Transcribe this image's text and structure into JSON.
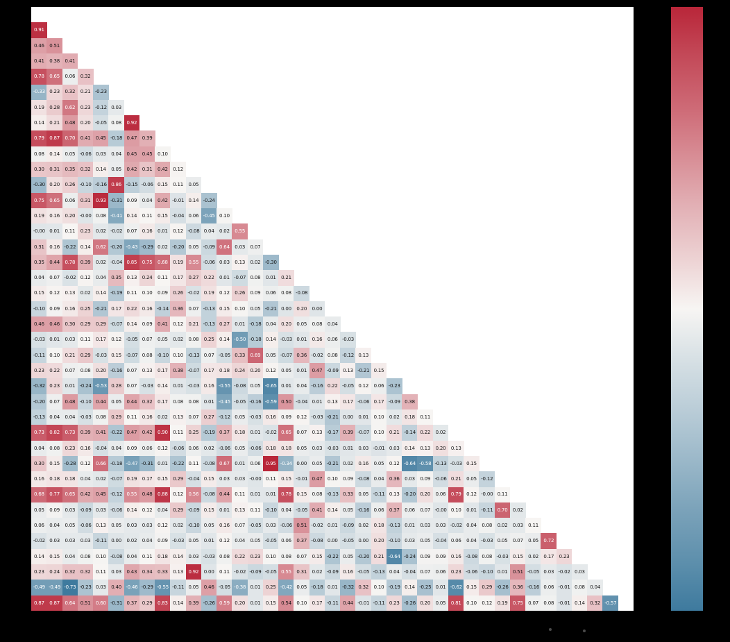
{
  "figure": {
    "background_color": "#000000",
    "plot_background_color": "#ffffff"
  },
  "chart_data": {
    "type": "heatmap",
    "subtype": "lower-triangular-correlation-matrix",
    "title": "",
    "xlabel": "",
    "ylabel": "",
    "n": 39,
    "grid": false,
    "legend_position": "colorbar-right",
    "value_format": "two-decimals",
    "colormap": {
      "positive": "#b92639",
      "center": "#f7f5f3",
      "negative": "#3e7a9e",
      "center_value": 0.11,
      "vmin": -0.73,
      "vmax": 0.95
    },
    "colorbar": {
      "position": "right",
      "top_color": "#b92639",
      "middle_color": "#f7f5f3",
      "bottom_color": "#3e7a9e",
      "tick_labels": []
    },
    "rows": [
      [
        "0.91"
      ],
      [
        "0.46",
        "0.51"
      ],
      [
        "0.41",
        "0.38",
        "0.41"
      ],
      [
        "0.78",
        "0.65",
        "0.06",
        "0.32"
      ],
      [
        "-0.33",
        "0.23",
        "0.32",
        "0.21",
        "-0.23"
      ],
      [
        "0.19",
        "0.28",
        "0.62",
        "0.23",
        "-0.12",
        "0.03"
      ],
      [
        "0.14",
        "0.21",
        "0.48",
        "0.20",
        "-0.05",
        "0.08",
        "0.92"
      ],
      [
        "0.79",
        "0.87",
        "0.70",
        "0.41",
        "0.45",
        "-0.18",
        "0.47",
        "0.39"
      ],
      [
        "0.08",
        "0.14",
        "0.05",
        "-0.06",
        "0.03",
        "0.04",
        "0.45",
        "0.45",
        "0.10"
      ],
      [
        "0.30",
        "0.31",
        "0.35",
        "0.32",
        "0.14",
        "0.05",
        "0.42",
        "0.31",
        "0.42",
        "0.12"
      ],
      [
        "-0.30",
        "0.20",
        "0.26",
        "-0.10",
        "-0.16",
        "0.86",
        "-0.15",
        "-0.06",
        "0.15",
        "0.11",
        "0.05"
      ],
      [
        "0.75",
        "0.65",
        "0.06",
        "0.31",
        "0.93",
        "-0.31",
        "0.09",
        "0.04",
        "0.42",
        "-0.01",
        "0.14",
        "-0.24"
      ],
      [
        "0.19",
        "0.16",
        "0.20",
        "-0.00",
        "0.08",
        "-0.41",
        "0.14",
        "0.11",
        "0.15",
        "-0.04",
        "0.06",
        "-0.45",
        "0.10"
      ],
      [
        "-0.00",
        "0.01",
        "0.11",
        "0.23",
        "0.02",
        "-0.02",
        "0.07",
        "0.16",
        "0.01",
        "0.12",
        "-0.08",
        "0.04",
        "0.02",
        "0.55"
      ],
      [
        "0.31",
        "0.16",
        "-0.22",
        "0.14",
        "0.62",
        "-0.20",
        "-0.43",
        "-0.29",
        "0.02",
        "-0.20",
        "0.05",
        "-0.09",
        "0.64",
        "0.03",
        "0.07"
      ],
      [
        "0.35",
        "0.44",
        "0.78",
        "0.39",
        "0.02",
        "-0.04",
        "0.85",
        "0.75",
        "0.68",
        "0.19",
        "0.55",
        "-0.06",
        "0.03",
        "0.13",
        "0.02",
        "-0.30"
      ],
      [
        "0.04",
        "0.07",
        "-0.02",
        "0.12",
        "0.04",
        "0.35",
        "0.13",
        "0.24",
        "0.11",
        "0.17",
        "0.27",
        "0.22",
        "0.01",
        "-0.07",
        "0.08",
        "0.01",
        "0.21"
      ],
      [
        "0.15",
        "0.12",
        "0.13",
        "0.02",
        "0.14",
        "-0.19",
        "0.11",
        "0.10",
        "0.09",
        "0.26",
        "-0.02",
        "0.19",
        "0.12",
        "0.26",
        "0.09",
        "0.06",
        "0.08",
        "-0.08"
      ],
      [
        "-0.10",
        "0.09",
        "0.16",
        "0.25",
        "-0.21",
        "0.17",
        "0.22",
        "0.16",
        "-0.14",
        "0.36",
        "0.07",
        "-0.13",
        "0.15",
        "0.10",
        "0.05",
        "-0.21",
        "0.00",
        "0.20",
        "0.00"
      ],
      [
        "0.46",
        "0.46",
        "0.30",
        "0.29",
        "0.29",
        "-0.07",
        "0.14",
        "0.09",
        "0.41",
        "0.12",
        "0.21",
        "-0.13",
        "0.27",
        "0.01",
        "-0.18",
        "0.04",
        "0.20",
        "0.05",
        "0.08",
        "0.04"
      ],
      [
        "-0.03",
        "0.01",
        "0.03",
        "0.11",
        "0.17",
        "0.12",
        "-0.05",
        "0.07",
        "0.05",
        "0.02",
        "0.08",
        "0.25",
        "0.14",
        "-0.50",
        "-0.18",
        "0.14",
        "-0.03",
        "0.01",
        "0.16",
        "0.06",
        "-0.03"
      ],
      [
        "-0.11",
        "0.10",
        "0.21",
        "0.29",
        "-0.03",
        "0.15",
        "-0.07",
        "0.08",
        "-0.10",
        "0.10",
        "-0.13",
        "0.07",
        "-0.05",
        "0.33",
        "0.69",
        "0.05",
        "-0.07",
        "0.36",
        "-0.02",
        "0.08",
        "-0.12",
        "0.13"
      ],
      [
        "0.23",
        "0.22",
        "0.07",
        "0.08",
        "0.20",
        "-0.16",
        "0.07",
        "0.13",
        "0.17",
        "0.38",
        "-0.07",
        "0.17",
        "0.18",
        "0.24",
        "0.20",
        "0.12",
        "0.05",
        "0.01",
        "0.47",
        "-0.09",
        "0.13",
        "-0.21",
        "0.15"
      ],
      [
        "-0.32",
        "0.23",
        "0.01",
        "-0.24",
        "-0.53",
        "0.28",
        "0.07",
        "-0.03",
        "0.14",
        "0.01",
        "-0.03",
        "0.16",
        "-0.55",
        "-0.08",
        "0.05",
        "-0.65",
        "0.01",
        "0.04",
        "-0.16",
        "0.22",
        "-0.05",
        "0.12",
        "0.06",
        "-0.23"
      ],
      [
        "-0.20",
        "0.07",
        "0.48",
        "-0.10",
        "0.44",
        "0.05",
        "0.44",
        "0.32",
        "0.17",
        "0.08",
        "0.08",
        "0.01",
        "-0.45",
        "-0.05",
        "-0.16",
        "-0.59",
        "0.50",
        "-0.04",
        "0.01",
        "0.13",
        "0.17",
        "-0.06",
        "0.17",
        "-0.09",
        "0.38"
      ],
      [
        "-0.13",
        "0.04",
        "0.04",
        "-0.03",
        "0.08",
        "0.29",
        "0.11",
        "0.16",
        "0.02",
        "0.13",
        "0.07",
        "0.27",
        "-0.12",
        "0.05",
        "-0.03",
        "0.16",
        "0.09",
        "0.12",
        "-0.03",
        "-0.21",
        "0.00",
        "0.01",
        "0.10",
        "0.02",
        "0.18",
        "0.11"
      ],
      [
        "0.73",
        "0.82",
        "0.73",
        "0.39",
        "0.41",
        "-0.22",
        "0.47",
        "0.42",
        "0.90",
        "0.11",
        "0.25",
        "-0.19",
        "0.37",
        "0.18",
        "0.01",
        "-0.02",
        "0.65",
        "0.07",
        "0.13",
        "-0.17",
        "0.39",
        "-0.07",
        "0.10",
        "0.21",
        "-0.14",
        "0.22",
        "0.02"
      ],
      [
        "0.04",
        "0.08",
        "0.23",
        "0.16",
        "-0.04",
        "0.04",
        "0.09",
        "0.06",
        "0.12",
        "-0.06",
        "0.06",
        "0.02",
        "-0.06",
        "0.05",
        "-0.06",
        "0.18",
        "0.18",
        "0.05",
        "0.03",
        "-0.03",
        "0.01",
        "0.03",
        "-0.01",
        "0.03",
        "0.14",
        "0.13",
        "0.20",
        "0.13"
      ],
      [
        "0.30",
        "0.15",
        "-0.28",
        "0.12",
        "0.66",
        "-0.18",
        "-0.47",
        "-0.31",
        "0.01",
        "-0.22",
        "0.11",
        "-0.08",
        "0.67",
        "0.01",
        "0.06",
        "0.95",
        "-0.34",
        "0.00",
        "0.05",
        "-0.21",
        "0.02",
        "0.16",
        "0.05",
        "0.12",
        "-0.64",
        "-0.58",
        "-0.13",
        "-0.03",
        "0.15"
      ],
      [
        "0.16",
        "0.18",
        "0.18",
        "0.04",
        "0.02",
        "-0.07",
        "0.19",
        "0.17",
        "0.15",
        "0.29",
        "-0.04",
        "0.15",
        "0.03",
        "0.03",
        "-0.00",
        "0.11",
        "0.15",
        "-0.01",
        "0.47",
        "0.10",
        "0.09",
        "-0.08",
        "0.04",
        "0.36",
        "0.03",
        "0.09",
        "-0.06",
        "0.21",
        "0.05",
        "-0.12"
      ],
      [
        "0.68",
        "0.77",
        "0.65",
        "0.42",
        "0.45",
        "-0.12",
        "0.55",
        "0.48",
        "0.88",
        "0.12",
        "0.56",
        "-0.08",
        "0.44",
        "0.11",
        "0.01",
        "0.01",
        "0.78",
        "0.15",
        "0.08",
        "-0.13",
        "0.33",
        "0.05",
        "-0.11",
        "0.13",
        "-0.20",
        "0.20",
        "0.06",
        "0.79",
        "0.12",
        "-0.00",
        "0.11"
      ],
      [
        "0.05",
        "0.09",
        "0.03",
        "-0.09",
        "0.03",
        "-0.06",
        "0.14",
        "0.12",
        "0.04",
        "0.29",
        "-0.09",
        "0.15",
        "0.01",
        "0.13",
        "0.11",
        "-0.10",
        "0.04",
        "-0.05",
        "0.41",
        "0.14",
        "0.05",
        "-0.16",
        "0.06",
        "0.37",
        "0.06",
        "0.07",
        "-0.00",
        "0.10",
        "0.01",
        "-0.11",
        "0.70",
        "0.02"
      ],
      [
        "0.06",
        "0.04",
        "0.05",
        "-0.06",
        "0.13",
        "0.05",
        "0.03",
        "0.03",
        "0.12",
        "0.02",
        "-0.10",
        "0.05",
        "0.16",
        "0.07",
        "-0.05",
        "0.03",
        "-0.06",
        "0.51",
        "-0.02",
        "0.01",
        "-0.09",
        "0.02",
        "0.18",
        "-0.13",
        "0.01",
        "0.03",
        "0.03",
        "-0.02",
        "0.04",
        "0.08",
        "0.02",
        "0.03",
        "0.11"
      ],
      [
        "-0.02",
        "0.03",
        "0.03",
        "0.03",
        "-0.11",
        "0.00",
        "0.02",
        "0.04",
        "0.09",
        "-0.03",
        "0.05",
        "0.01",
        "0.12",
        "0.04",
        "0.05",
        "-0.05",
        "0.06",
        "0.37",
        "-0.08",
        "0.00",
        "-0.05",
        "0.00",
        "0.20",
        "-0.10",
        "0.03",
        "0.05",
        "-0.04",
        "0.06",
        "0.04",
        "-0.03",
        "0.05",
        "0.07",
        "0.05",
        "0.72"
      ],
      [
        "0.14",
        "0.15",
        "0.04",
        "0.08",
        "0.10",
        "-0.08",
        "0.04",
        "0.11",
        "0.18",
        "0.14",
        "0.03",
        "-0.03",
        "0.08",
        "0.22",
        "0.23",
        "0.10",
        "0.08",
        "0.07",
        "0.15",
        "-0.22",
        "0.05",
        "-0.20",
        "0.21",
        "-0.64",
        "-0.24",
        "0.09",
        "0.09",
        "0.16",
        "-0.08",
        "0.08",
        "-0.03",
        "0.15",
        "0.02",
        "0.17",
        "0.23"
      ],
      [
        "0.23",
        "0.24",
        "0.32",
        "0.32",
        "0.11",
        "0.03",
        "0.43",
        "0.34",
        "0.33",
        "0.13",
        "0.92",
        "0.00",
        "0.11",
        "-0.02",
        "-0.09",
        "-0.05",
        "0.55",
        "0.31",
        "0.02",
        "-0.09",
        "0.16",
        "-0.05",
        "-0.13",
        "0.04",
        "-0.04",
        "0.07",
        "0.06",
        "0.23",
        "-0.06",
        "-0.10",
        "0.01",
        "0.51",
        "-0.05",
        "0.03",
        "-0.02",
        "0.03"
      ],
      [
        "-0.49",
        "-0.49",
        "-0.73",
        "-0.23",
        "0.03",
        "0.40",
        "-0.46",
        "-0.29",
        "-0.55",
        "-0.11",
        "0.05",
        "0.46",
        "-0.05",
        "-0.38",
        "0.01",
        "0.25",
        "-0.42",
        "0.05",
        "-0.18",
        "0.01",
        "-0.32",
        "0.32",
        "0.10",
        "-0.19",
        "0.14",
        "-0.25",
        "0.01",
        "-0.62",
        "0.15",
        "0.29",
        "-0.26",
        "0.36",
        "-0.16",
        "0.06",
        "-0.01",
        "0.08",
        "0.04"
      ],
      [
        "0.87",
        "0.87",
        "0.64",
        "0.51",
        "0.60",
        "-0.31",
        "0.37",
        "0.29",
        "0.83",
        "0.14",
        "0.39",
        "-0.26",
        "0.59",
        "0.20",
        "0.01",
        "0.15",
        "0.54",
        "0.10",
        "0.17",
        "-0.11",
        "0.44",
        "-0.01",
        "-0.11",
        "0.23",
        "-0.26",
        "0.20",
        "0.05",
        "0.81",
        "0.10",
        "0.12",
        "0.19",
        "0.75",
        "0.07",
        "0.08",
        "-0.01",
        "0.14",
        "0.32",
        "-0.57"
      ]
    ]
  }
}
